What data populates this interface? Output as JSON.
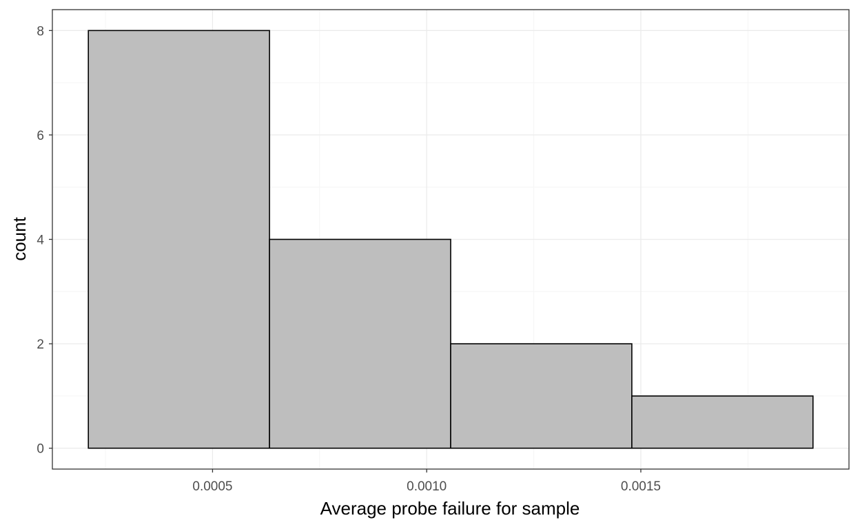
{
  "chart_data": {
    "type": "histogram",
    "xlabel": "Average probe failure for sample",
    "ylabel": "count",
    "bins": [
      {
        "x0": 0.00021,
        "x1": 0.000633,
        "count": 8
      },
      {
        "x0": 0.000633,
        "x1": 0.001056,
        "count": 4
      },
      {
        "x0": 0.001056,
        "x1": 0.001479,
        "count": 2
      },
      {
        "x0": 0.001479,
        "x1": 0.001902,
        "count": 1
      }
    ],
    "xlim": [
      0.000126,
      0.001986
    ],
    "ylim": [
      -0.4,
      8.4
    ],
    "x_ticks": [
      0.0005,
      0.001,
      0.0015
    ],
    "x_tick_labels": [
      "0.0005",
      "0.0010",
      "0.0015"
    ],
    "x_minor_ticks": [
      0.00025,
      0.00075,
      0.00125,
      0.00175
    ],
    "y_ticks": [
      0,
      2,
      4,
      6,
      8
    ],
    "y_tick_labels": [
      "0",
      "2",
      "4",
      "6",
      "8"
    ],
    "y_minor_ticks": [
      1,
      3,
      5,
      7
    ],
    "grid": true,
    "colors": {
      "bar_fill": "#bebebe",
      "bar_stroke": "#000000",
      "grid_major": "#ebebeb",
      "grid_minor": "#f5f5f5",
      "panel_border": "#333333"
    }
  }
}
